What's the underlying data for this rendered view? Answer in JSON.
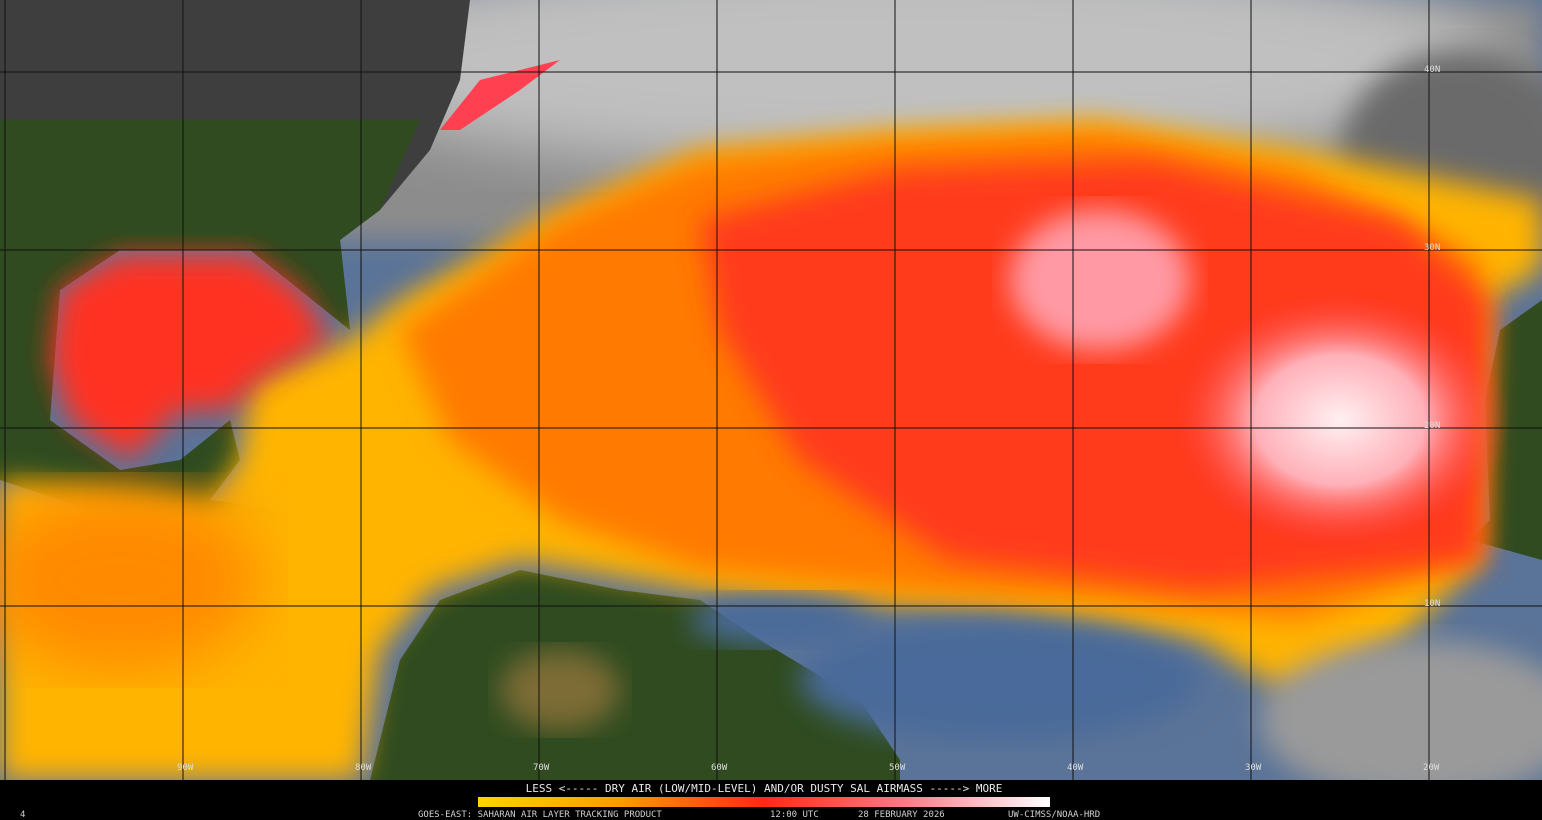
{
  "title_bar": {
    "legend": "LESS <----- DRY AIR (LOW/MID-LEVEL) AND/OR DUSTY SAL AIRMASS -----> MORE",
    "frame": "4",
    "product": "GOES-EAST: SAHARAN AIR LAYER TRACKING PRODUCT",
    "time": "12:00 UTC",
    "date": "28 FEBRUARY 2026",
    "credit": "UW-CIMSS/NOAA-HRD"
  },
  "grid": {
    "latitudes": [
      "40N",
      "30N",
      "20N",
      "10N"
    ],
    "longitudes": [
      "90W",
      "80W",
      "70W",
      "60W",
      "50W",
      "40W",
      "30W",
      "20W"
    ]
  }
}
